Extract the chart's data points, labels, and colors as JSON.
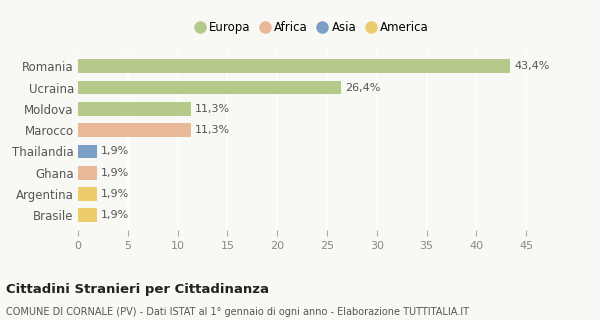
{
  "categories": [
    "Romania",
    "Ucraina",
    "Moldova",
    "Marocco",
    "Thailandia",
    "Ghana",
    "Argentina",
    "Brasile"
  ],
  "values": [
    43.4,
    26.4,
    11.3,
    11.3,
    1.9,
    1.9,
    1.9,
    1.9
  ],
  "labels": [
    "43,4%",
    "26,4%",
    "11,3%",
    "11,3%",
    "1,9%",
    "1,9%",
    "1,9%",
    "1,9%"
  ],
  "colors": [
    "#b5c98a",
    "#b5c98a",
    "#b5c98a",
    "#e8b898",
    "#7b9fc4",
    "#e8b898",
    "#edcc6e",
    "#edcc6e"
  ],
  "legend_labels": [
    "Europa",
    "Africa",
    "Asia",
    "America"
  ],
  "legend_colors": [
    "#b5c98a",
    "#e8b898",
    "#7b9fc4",
    "#edcc6e"
  ],
  "title": "Cittadini Stranieri per Cittadinanza",
  "subtitle": "COMUNE DI CORNALE (PV) - Dati ISTAT al 1° gennaio di ogni anno - Elaborazione TUTTITALIA.IT",
  "xlim": [
    0,
    47
  ],
  "xticks": [
    0,
    5,
    10,
    15,
    20,
    25,
    30,
    35,
    40,
    45
  ],
  "bg_color": "#f8f8f5",
  "plot_bg_color": "#f8f8f5",
  "grid_color": "#ffffff",
  "bar_height": 0.65,
  "label_fontsize": 8,
  "ytick_fontsize": 8.5,
  "xtick_fontsize": 8,
  "legend_fontsize": 8.5,
  "title_fontsize": 9.5,
  "subtitle_fontsize": 7
}
